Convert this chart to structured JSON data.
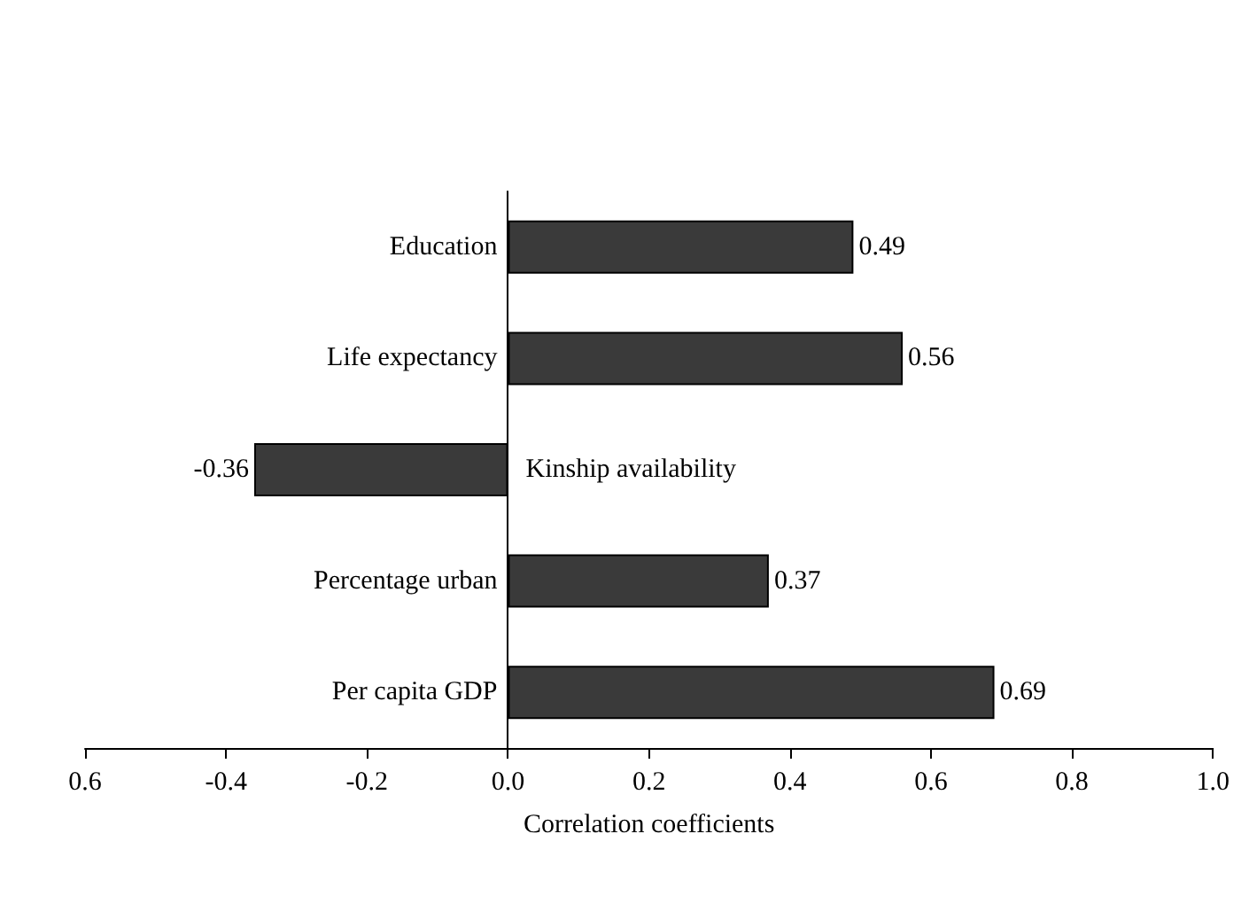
{
  "chart_data": {
    "type": "bar",
    "orientation": "horizontal",
    "xlabel": "Correlation coefficients",
    "categories": [
      "Education",
      "Life expectancy",
      "Kinship availability",
      "Percentage urban",
      "Per capita GDP"
    ],
    "values": [
      0.49,
      0.56,
      -0.36,
      0.37,
      0.69
    ],
    "color": "#3a3a3a",
    "xlim": [
      -0.6,
      1.0
    ],
    "xticks": [
      {
        "value": -0.6,
        "label": "0.6"
      },
      -0.4,
      -0.2,
      {
        "value": 0,
        "label": "0.0"
      },
      0.2,
      0.4,
      0.6,
      0.8,
      {
        "value": 1,
        "label": "1.0"
      }
    ],
    "data_labels": true,
    "grid": false
  }
}
